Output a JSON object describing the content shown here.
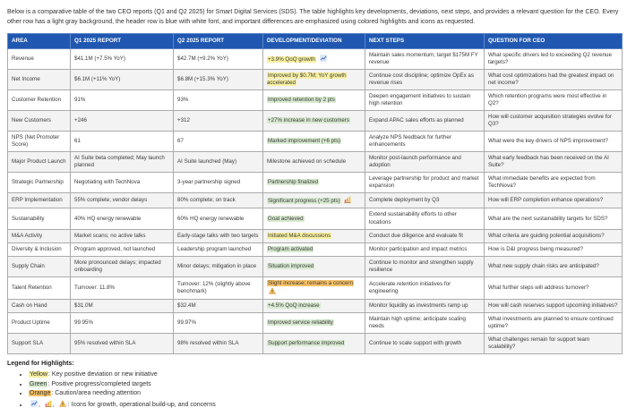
{
  "intro": {
    "text": "Below is a comparative table of the two CEO reports (Q1 and Q2 2025) for Smart Digital Services (SDS). The table highlights key developments, deviations, next steps, and provides a relevant question for the CEO. Every other row has a light gray background, the header row is blue with white font, and important differences are emphasized using colored highlights and icons as requested."
  },
  "colors": {
    "header_bg": "#2057b0",
    "header_text": "#ffffff",
    "row_alt_bg": "#f3f3f3",
    "highlight_yellow": "#f8f0a0",
    "highlight_green": "#d8ead0",
    "highlight_orange": "#f9c265"
  },
  "table": {
    "columns": [
      "AREA",
      "Q1 2025 REPORT",
      "Q2 2025 REPORT",
      "DEVELOPMENT/DEVIATION",
      "NEXT STEPS",
      "QUESTION FOR CEO"
    ],
    "rows": [
      {
        "area": "Revenue",
        "q1": "$41.1M (+7.5% YoY)",
        "q2": "$42.7M (+9.2% YoY)",
        "dev": "+3.9% QoQ growth",
        "dev_highlight": "yellow",
        "dev_icon": "growth-chart-icon",
        "next": "Maintain sales momentum; target $175M FY revenue",
        "question": "What specific drivers led to exceeding Q2 revenue targets?"
      },
      {
        "area": "Net Income",
        "q1": "$6.1M (+11% YoY)",
        "q2": "$6.8M (+15.3% YoY)",
        "dev": "Improved by $0.7M; YoY growth accelerated",
        "dev_highlight": "yellow",
        "dev_icon": null,
        "next": "Continue cost discipline; optimize OpEx as revenue rises",
        "question": "What cost optimizations had the greatest impact on net income?"
      },
      {
        "area": "Customer Retention",
        "q1": "91%",
        "q2": "93%",
        "dev": "Improved retention by 2 pts",
        "dev_highlight": "green",
        "dev_icon": null,
        "next": "Deepen engagement initiatives to sustain high retention",
        "question": "Which retention programs were most effective in Q2?"
      },
      {
        "area": "New Customers",
        "q1": "+246",
        "q2": "+312",
        "dev": "+27% increase in new customers",
        "dev_highlight": "green",
        "dev_icon": null,
        "next": "Expand APAC sales efforts as planned",
        "question": "How will customer acquisition strategies evolve for Q3?"
      },
      {
        "area": "NPS (Net Promoter Score)",
        "q1": "61",
        "q2": "67",
        "dev": "Marked improvement (+6 pts)",
        "dev_highlight": "green",
        "dev_icon": null,
        "next": "Analyze NPS feedback for further enhancements",
        "question": "What were the key drivers of NPS improvement?"
      },
      {
        "area": "Major Product Launch",
        "q1": "AI Suite beta completed; May launch planned",
        "q2": "AI Suite launched (May)",
        "dev": "Milestone achieved on schedule",
        "dev_highlight": null,
        "dev_icon": null,
        "next": "Monitor post-launch performance and adoption",
        "question": "What early feedback has been received on the AI Suite?"
      },
      {
        "area": "Strategic Partnership",
        "q1": "Negotiating with TechNova",
        "q2": "3-year partnership signed",
        "dev": "Partnership finalized",
        "dev_highlight": "green",
        "dev_icon": null,
        "next": "Leverage partnership for product and market expansion",
        "question": "What immediate benefits are expected from TechNova?"
      },
      {
        "area": "ERP Implementation",
        "q1": "55% complete; vendor delays",
        "q2": "80% complete; on track",
        "dev": "Significant progress (+25 pts)",
        "dev_highlight": "green",
        "dev_icon": "bar-chart-icon",
        "next": "Complete deployment by Q3",
        "question": "How will ERP completion enhance operations?"
      },
      {
        "area": "Sustainability",
        "q1": "40% HQ energy renewable",
        "q2": "60% HQ energy renewable",
        "dev": "Goal achieved",
        "dev_highlight": "green",
        "dev_icon": null,
        "next": "Extend sustainability efforts to other locations",
        "question": "What are the next sustainability targets for SDS?"
      },
      {
        "area": "M&A Activity",
        "q1": "Market scans; no active talks",
        "q2": "Early-stage talks with two targets",
        "dev": "Initiated M&A discussions",
        "dev_highlight": "yellow",
        "dev_icon": null,
        "next": "Conduct due diligence and evaluate fit",
        "question": "What criteria are guiding potential acquisitions?"
      },
      {
        "area": "Diversity & Inclusion",
        "q1": "Program approved, not launched",
        "q2": "Leadership program launched",
        "dev": "Program activated",
        "dev_highlight": "green",
        "dev_icon": null,
        "next": "Monitor participation and impact metrics",
        "question": "How is D&I progress being measured?"
      },
      {
        "area": "Supply Chain",
        "q1": "More pronounced delays; impacted onboarding",
        "q2": "Minor delays; mitigation in place",
        "dev": "Situation improved",
        "dev_highlight": "green",
        "dev_icon": null,
        "next": "Continue to monitor and strengthen supply resilience",
        "question": "What new supply chain risks are anticipated?"
      },
      {
        "area": "Talent Retention",
        "q1": "Turnover: 11.8%",
        "q2": "Turnover: 12% (slightly above benchmark)",
        "dev": "Slight increase; remains a concern",
        "dev_highlight": "orange",
        "dev_icon": "warning-icon",
        "next": "Accelerate retention initiatives for engineering",
        "question": "What further steps will address turnover?"
      },
      {
        "area": "Cash on Hand",
        "q1": "$31.0M",
        "q2": "$32.4M",
        "dev": "+4.5% QoQ increase",
        "dev_highlight": "green",
        "dev_icon": null,
        "next": "Monitor liquidity as investments ramp up",
        "question": "How will cash reserves support upcoming initiatives?"
      },
      {
        "area": "Product Uptime",
        "q1": "99.95%",
        "q2": "99.97%",
        "dev": "Improved service reliability",
        "dev_highlight": "green",
        "dev_icon": null,
        "next": "Maintain high uptime; anticipate scaling needs",
        "question": "What investments are planned to ensure continued uptime?"
      },
      {
        "area": "Support SLA",
        "q1": "95% resolved within SLA",
        "q2": "98% resolved within SLA",
        "dev": "Support performance improved",
        "dev_highlight": "green",
        "dev_icon": null,
        "next": "Continue to scale support with growth",
        "question": "What challenges remain for support team scalability?"
      }
    ]
  },
  "legend": {
    "title": "Legend for Highlights:",
    "items": [
      {
        "label": "Yellow",
        "highlight": "yellow",
        "text": ": Key positive deviation or new initiative"
      },
      {
        "label": "Green",
        "highlight": "green",
        "text": ": Positive progress/completed targets"
      },
      {
        "label": "Orange",
        "highlight": "orange",
        "text": ": Caution/area needing attention"
      },
      {
        "icons": [
          "growth-chart-icon",
          "bar-chart-icon",
          "warning-icon"
        ],
        "text": ": Icons for growth, operational build-up, and concerns"
      }
    ]
  }
}
